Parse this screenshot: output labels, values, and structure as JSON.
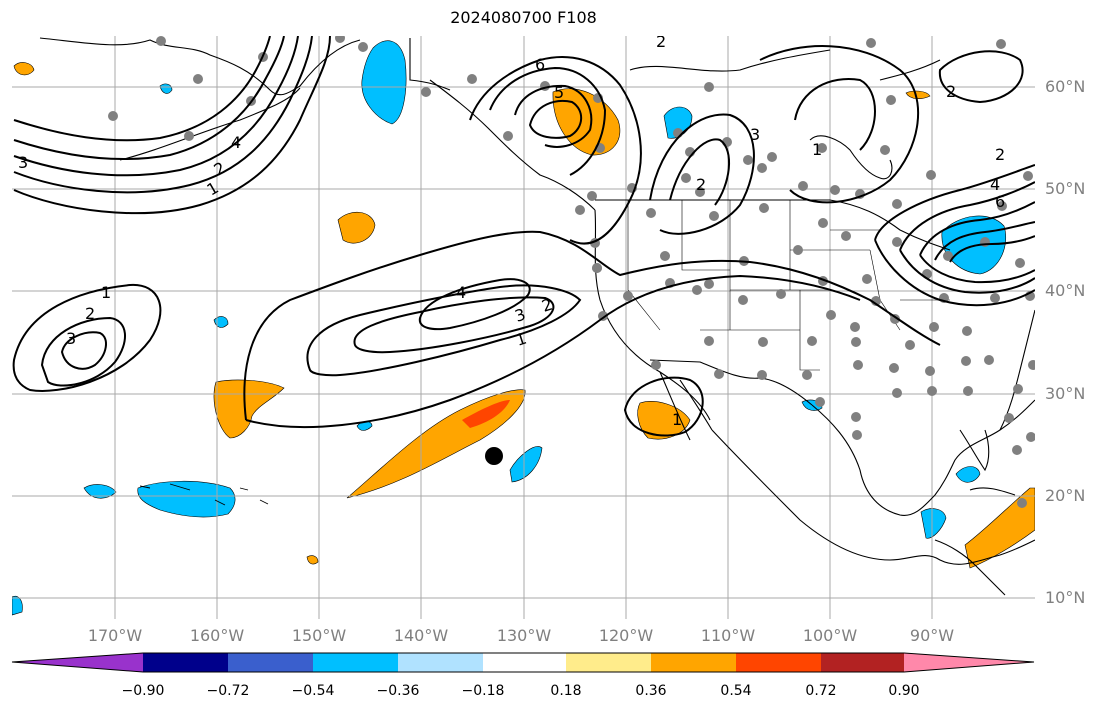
{
  "title": "2024080700 F108",
  "lat_labels": [
    "60°N",
    "50°N",
    "40°N",
    "30°N",
    "20°N",
    "10°N"
  ],
  "lon_labels": [
    "170°W",
    "160°W",
    "150°W",
    "140°W",
    "130°W",
    "120°W",
    "110°W",
    "100°W",
    "90°W"
  ],
  "contour_labels": [
    "1",
    "2",
    "3",
    "4",
    "5",
    "6",
    "1",
    "2",
    "3",
    "4",
    "1",
    "2",
    "3",
    "1",
    "2",
    "3",
    "2",
    "4",
    "6",
    "2",
    "2",
    "1"
  ],
  "colorbar": {
    "ticks": [
      "−0.90",
      "−0.72",
      "−0.54",
      "−0.36",
      "−0.18",
      "0.18",
      "0.36",
      "0.54",
      "0.72",
      "0.90"
    ],
    "colors": [
      "#9932cc",
      "#00008b",
      "#3a5fcd",
      "#00bfff",
      "#b0e2ff",
      "#ffffff",
      "#ffec8b",
      "#ffa500",
      "#ff4500",
      "#b22222",
      "#ff88aa"
    ]
  },
  "colors": {
    "blue_fill": "#00bfff",
    "orange_fill": "#ffa500",
    "red_fill": "#ff4500",
    "station": "#808080",
    "marker": "#000000",
    "grid": "#a9a9a9"
  }
}
